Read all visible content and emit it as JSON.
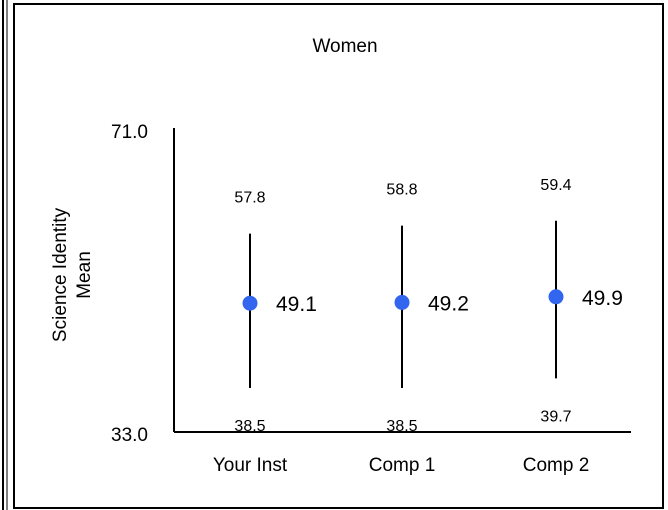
{
  "chart_data": {
    "type": "scatter",
    "title": "Women",
    "ylabel_lines": [
      "Science Identity",
      "Mean"
    ],
    "xlabel": "",
    "ylim": [
      33.0,
      71.0
    ],
    "y_tick_labels": [
      "71.0",
      "33.0"
    ],
    "categories": [
      "Your Inst",
      "Comp 1",
      "Comp 2"
    ],
    "series": [
      {
        "values": [
          49.1,
          49.2,
          49.9
        ],
        "upper": [
          57.8,
          58.8,
          59.4
        ],
        "lower": [
          38.5,
          38.5,
          39.7
        ],
        "value_labels": [
          "49.1",
          "49.2",
          "49.9"
        ],
        "upper_labels": [
          "57.8",
          "58.8",
          "59.4"
        ],
        "lower_labels": [
          "38.5",
          "38.5",
          "39.7"
        ]
      }
    ],
    "grid": false,
    "legend": "none",
    "colors": {
      "point": "#3366ee",
      "line": "#000000"
    }
  }
}
